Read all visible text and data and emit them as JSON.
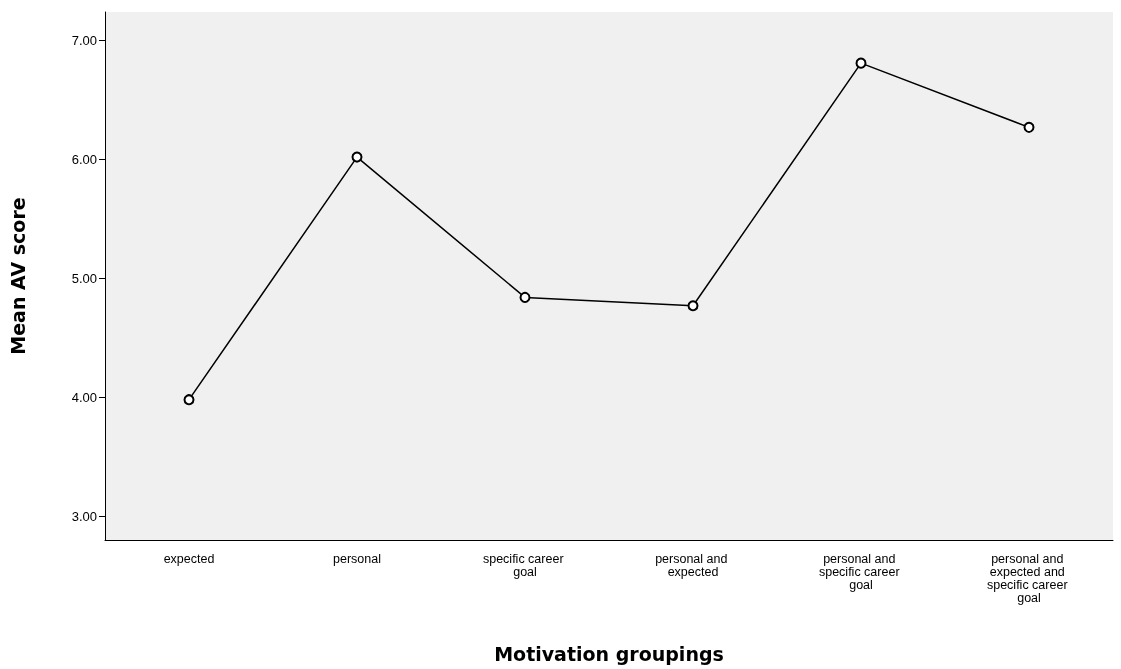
{
  "chart_data": {
    "type": "line",
    "xlabel": "Motivation groupings",
    "ylabel": "Mean AV score",
    "categories": [
      "expected",
      "personal",
      "specific career goal",
      "personal and expected",
      "personal and specific career goal",
      "personal and expected and specific career goal"
    ],
    "values": [
      3.98,
      6.02,
      4.84,
      4.77,
      6.81,
      6.27
    ],
    "color": "#000000",
    "marker": "circle",
    "line_style": "solid",
    "grid": false,
    "ylim": [
      2.8,
      7.24
    ],
    "yticks": [
      {
        "value": 3,
        "label": "3.00"
      },
      {
        "value": 4,
        "label": "4.00"
      },
      {
        "value": 5,
        "label": "5.00"
      },
      {
        "value": 6,
        "label": "6.00"
      },
      {
        "value": 7,
        "label": "7.00"
      }
    ]
  }
}
